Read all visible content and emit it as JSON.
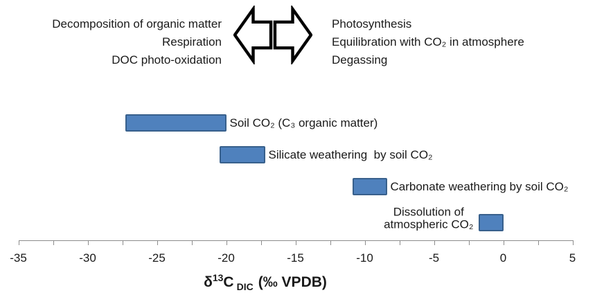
{
  "top_banner": {
    "left_processes": [
      "Decomposition of organic matter",
      "Respiration",
      "DOC photo-oxidation"
    ],
    "right_processes": [
      "Photosynthesis",
      "Equilibration with CO₂ in atmosphere",
      "Degassing"
    ],
    "arrow_icons": [
      "left-block-arrow",
      "right-block-arrow"
    ]
  },
  "chart_data": {
    "type": "bar",
    "subtype": "horizontal-range-bars",
    "title": "",
    "xlabel": "δ13C DIC (‰ VPDB)",
    "xlabel_parts": {
      "base1": "δ",
      "sup": "13",
      "base2": "C",
      "sub": "DIC",
      "units": "(‰ VPDB)"
    },
    "xlim": [
      -35,
      5
    ],
    "x_minor_step": 2.5,
    "x_major_ticks": [
      -35,
      -30,
      -25,
      -20,
      -15,
      -10,
      -5,
      0,
      5
    ],
    "x_tick_labels": [
      "-35",
      "-30",
      "-25",
      "-20",
      "-15",
      "-10",
      "-5",
      "0",
      "5"
    ],
    "grid": false,
    "legend": false,
    "bars": [
      {
        "label": "Soil CO₂ (C₃ organic matter)",
        "range": [
          -27.3,
          -20.0
        ],
        "label_side": "right"
      },
      {
        "label": "Silicate weathering  by soil CO₂",
        "range": [
          -20.5,
          -17.2
        ],
        "label_side": "right"
      },
      {
        "label": "Carbonate weathering by soil CO₂",
        "range": [
          -10.9,
          -8.4
        ],
        "label_side": "right"
      },
      {
        "label": "Dissolution of atmospheric CO₂",
        "label_lines": [
          "Dissolution of",
          "atmospheric CO₂"
        ],
        "range": [
          -1.8,
          0.0
        ],
        "label_side": "left"
      }
    ],
    "colors": {
      "bar_fill": "#4f81bd",
      "bar_border": "#38608c",
      "axis": "#8c8c8c",
      "text": "#1a1a1a"
    }
  }
}
